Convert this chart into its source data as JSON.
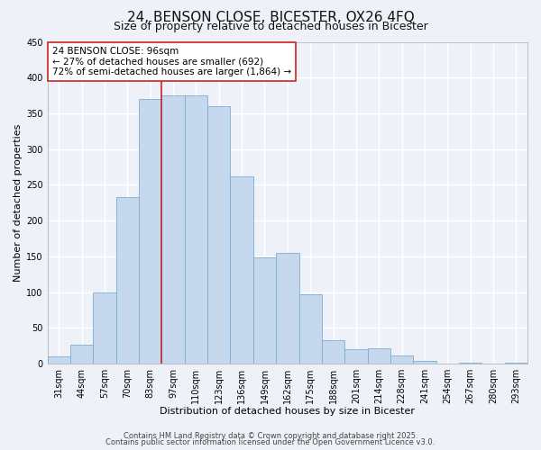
{
  "title": "24, BENSON CLOSE, BICESTER, OX26 4FQ",
  "subtitle": "Size of property relative to detached houses in Bicester",
  "xlabel": "Distribution of detached houses by size in Bicester",
  "ylabel": "Number of detached properties",
  "bar_labels": [
    "31sqm",
    "44sqm",
    "57sqm",
    "70sqm",
    "83sqm",
    "97sqm",
    "110sqm",
    "123sqm",
    "136sqm",
    "149sqm",
    "162sqm",
    "175sqm",
    "188sqm",
    "201sqm",
    "214sqm",
    "228sqm",
    "241sqm",
    "254sqm",
    "267sqm",
    "280sqm",
    "293sqm"
  ],
  "bar_values": [
    10,
    27,
    100,
    233,
    370,
    375,
    375,
    360,
    262,
    148,
    155,
    97,
    33,
    20,
    22,
    11,
    4,
    0,
    1,
    0,
    1
  ],
  "bar_color": "#c5d8ed",
  "bar_edge_color": "#7aadd4",
  "vline_x_index": 5,
  "vline_color": "#cc2222",
  "annotation_title": "24 BENSON CLOSE: 96sqm",
  "annotation_line1": "← 27% of detached houses are smaller (692)",
  "annotation_line2": "72% of semi-detached houses are larger (1,864) →",
  "annotation_box_facecolor": "#ffffff",
  "annotation_box_edgecolor": "#cc2222",
  "ylim": [
    0,
    450
  ],
  "yticks": [
    0,
    50,
    100,
    150,
    200,
    250,
    300,
    350,
    400,
    450
  ],
  "footer1": "Contains HM Land Registry data © Crown copyright and database right 2025.",
  "footer2": "Contains public sector information licensed under the Open Government Licence v3.0.",
  "background_color": "#eef2f8",
  "grid_color": "#ffffff",
  "title_fontsize": 11,
  "subtitle_fontsize": 9,
  "axis_label_fontsize": 8,
  "tick_fontsize": 7,
  "annotation_fontsize": 7.5,
  "footer_fontsize": 6
}
